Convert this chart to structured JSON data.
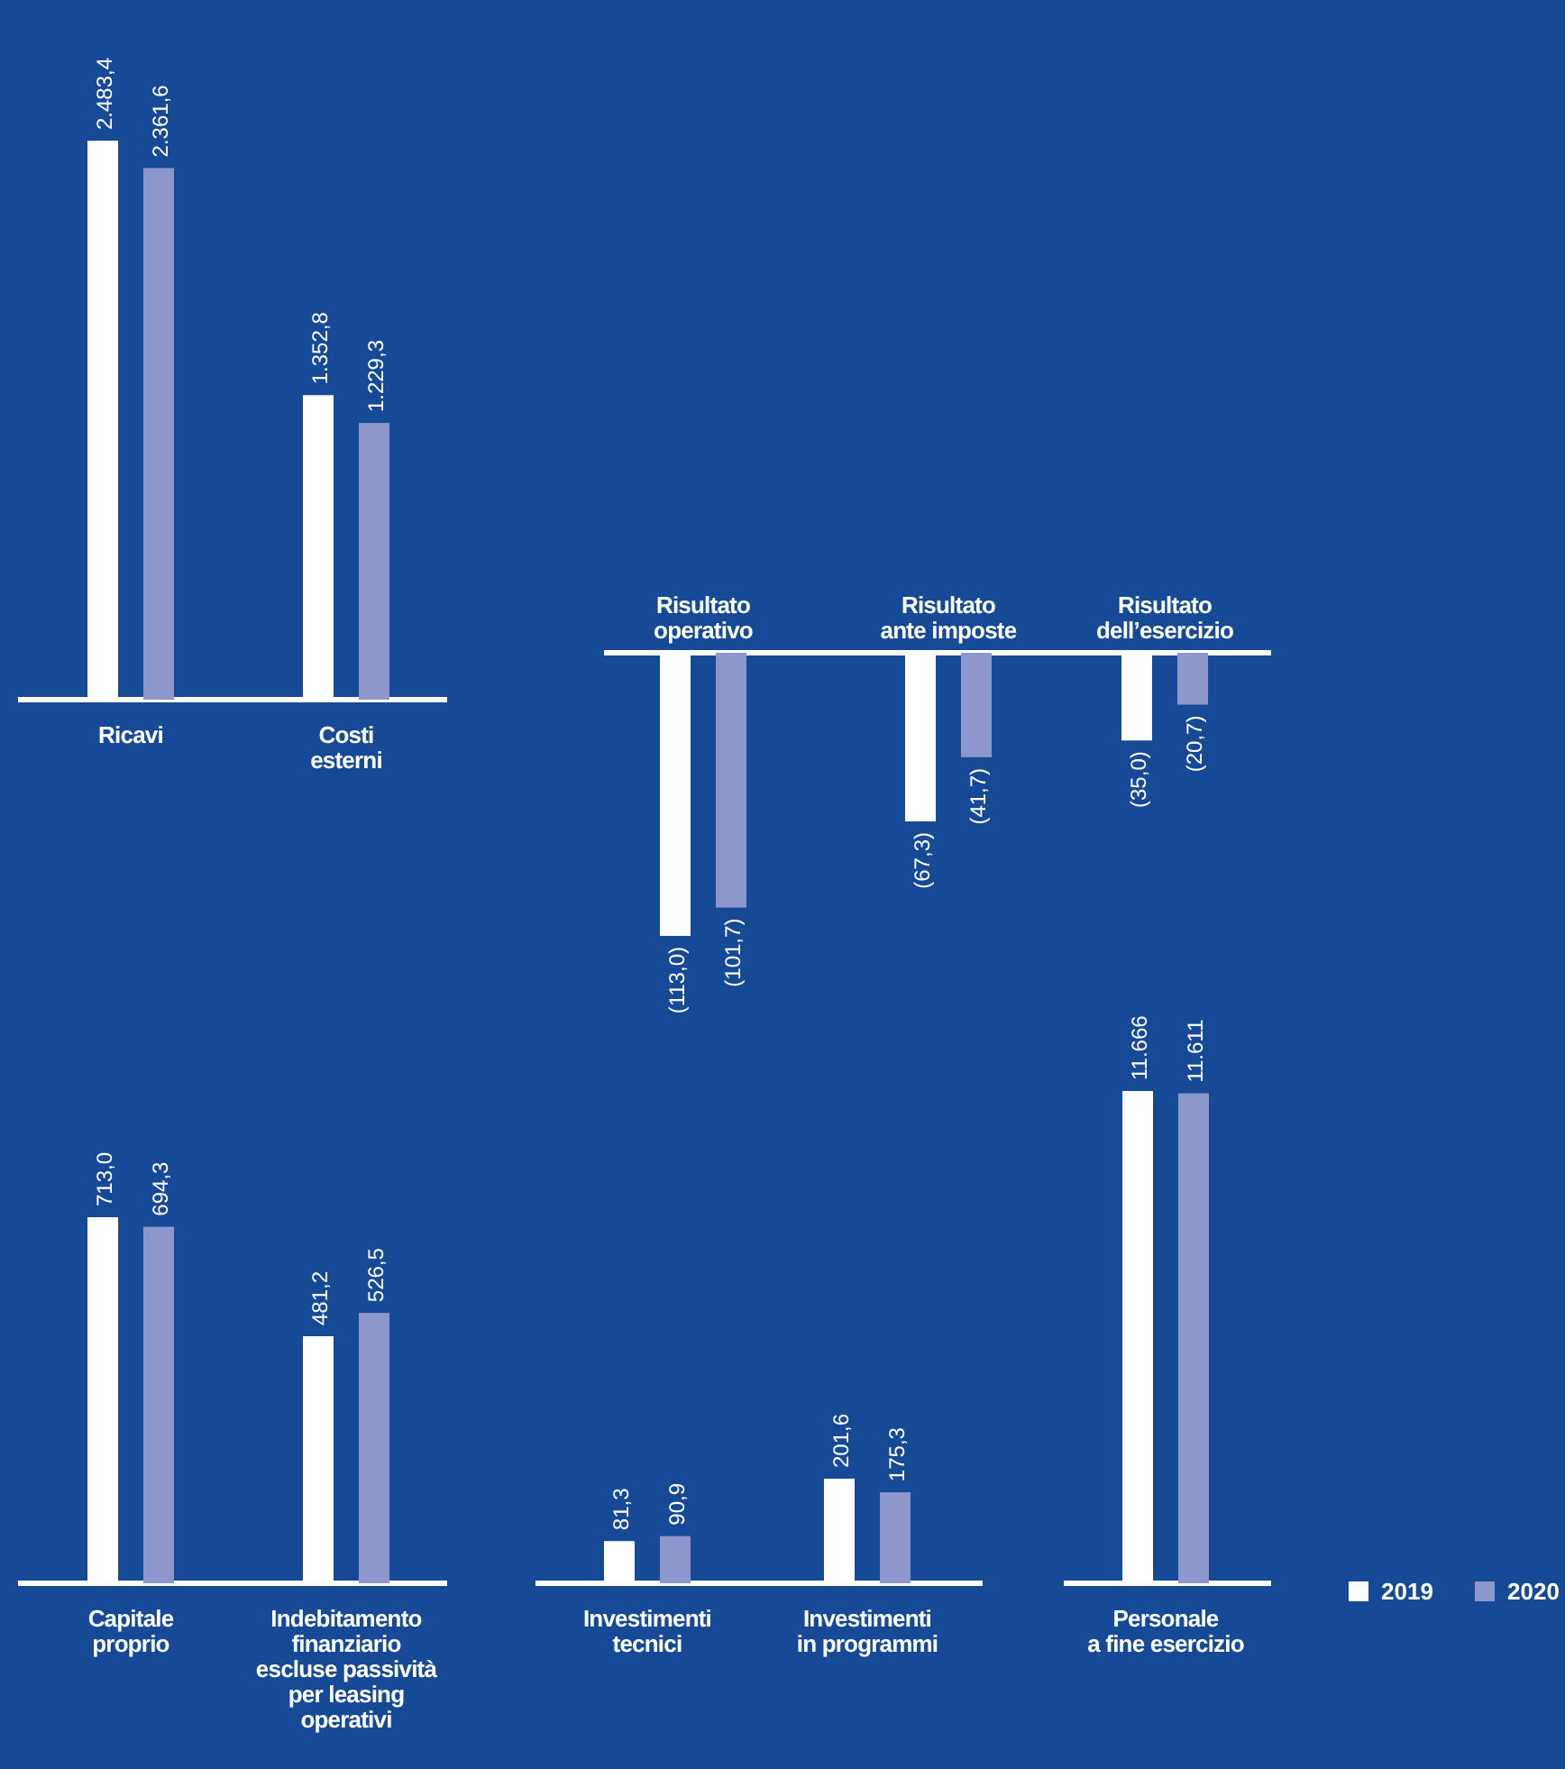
{
  "chart_data": [
    {
      "type": "bar",
      "categories": [
        "Ricavi",
        "Costi\nesterni"
      ],
      "series": [
        {
          "color": "#ffffff",
          "values": [
            2483.4,
            1352.8
          ],
          "value_labels": [
            "2.483,4",
            "1.352,8"
          ]
        },
        {
          "color": "#8e97cb",
          "values": [
            2361.6,
            1229.3
          ],
          "value_labels": [
            "2.361,6",
            "1.229,3"
          ]
        }
      ]
    },
    {
      "type": "bar",
      "categories": [
        "Risultato\noperativo",
        "Risultato\nante imposte",
        "Risultato\ndell’esercizio"
      ],
      "series": [
        {
          "color": "#ffffff",
          "values": [
            -113.0,
            -67.3,
            -35.0
          ],
          "value_labels": [
            "(113,0)",
            "(67,3)",
            "(35,0)"
          ]
        },
        {
          "color": "#8e97cb",
          "values": [
            -101.7,
            -41.7,
            -20.7
          ],
          "value_labels": [
            "(101,7)",
            "(41,7)",
            "(20,7)"
          ]
        }
      ]
    },
    {
      "type": "bar",
      "categories": [
        "Capitale\nproprio",
        "Indebitamento\nfinanziario\nescluse passività\nper leasing\noperativi"
      ],
      "series": [
        {
          "color": "#ffffff",
          "values": [
            713.0,
            481.2
          ],
          "value_labels": [
            "713,0",
            "481,2"
          ]
        },
        {
          "color": "#8e97cb",
          "values": [
            694.3,
            526.5
          ],
          "value_labels": [
            "694,3",
            "526,5"
          ]
        }
      ]
    },
    {
      "type": "bar",
      "categories": [
        "Investimenti\ntecnici",
        "Investimenti\nin programmi"
      ],
      "series": [
        {
          "color": "#ffffff",
          "values": [
            81.3,
            201.6
          ],
          "value_labels": [
            "81,3",
            "201,6"
          ]
        },
        {
          "color": "#8e97cb",
          "values": [
            90.9,
            175.3
          ],
          "value_labels": [
            "90,9",
            "175,3"
          ]
        }
      ]
    },
    {
      "type": "bar",
      "categories": [
        "Personale\na fine esercizio"
      ],
      "legend": "right",
      "series": [
        {
          "name": "2019",
          "color": "#ffffff",
          "values": [
            11666
          ],
          "value_labels": [
            "11.666"
          ]
        },
        {
          "name": "2020",
          "color": "#8e97cb",
          "values": [
            11611
          ],
          "value_labels": [
            "11.611"
          ]
        }
      ]
    }
  ]
}
